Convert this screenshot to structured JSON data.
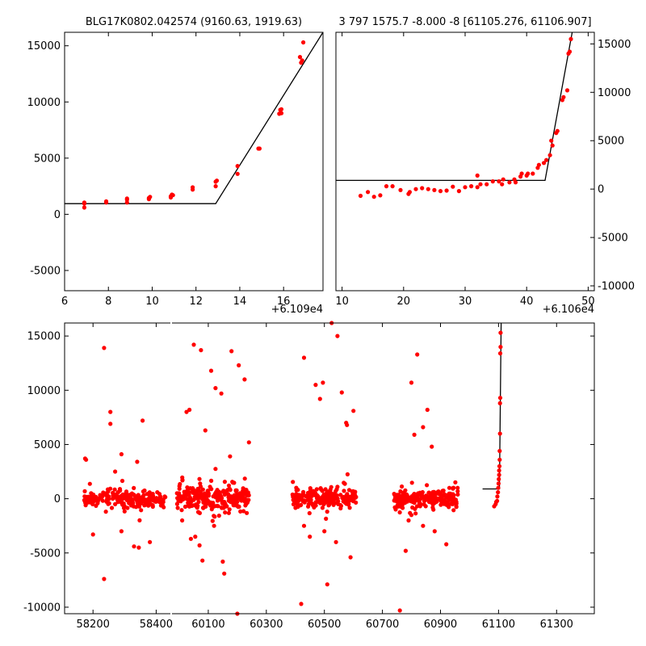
{
  "chart_data": [
    {
      "id": "top_left",
      "type": "scatter",
      "title": "BLG17K0802.042574 (9160.63, 1919.63)",
      "xlim": [
        6,
        17.8
      ],
      "ylim": [
        -6800,
        16200
      ],
      "xticks": [
        "6",
        "8",
        "10",
        "12",
        "14",
        "16"
      ],
      "xtick_values": [
        6,
        8,
        10,
        12,
        14,
        16
      ],
      "yticks": [
        "15000",
        "10000",
        "5000",
        "0",
        "-5000"
      ],
      "ytick_values": [
        15000,
        10000,
        5000,
        0,
        -5000
      ],
      "x_offset_label": "+6.109e4",
      "marker_color": "#ff0000",
      "line_color": "#000000",
      "points": [
        [
          6.9,
          600
        ],
        [
          6.9,
          950
        ],
        [
          6.9,
          1050
        ],
        [
          7.9,
          1050
        ],
        [
          7.9,
          1150
        ],
        [
          8.85,
          1050
        ],
        [
          8.85,
          1300
        ],
        [
          8.85,
          1400
        ],
        [
          9.85,
          1350
        ],
        [
          9.85,
          1450
        ],
        [
          9.9,
          1550
        ],
        [
          10.85,
          1500
        ],
        [
          10.85,
          1600
        ],
        [
          10.9,
          1750
        ],
        [
          10.95,
          1700
        ],
        [
          11.85,
          2200
        ],
        [
          11.85,
          2400
        ],
        [
          12.9,
          2500
        ],
        [
          12.9,
          2900
        ],
        [
          12.95,
          3000
        ],
        [
          13.9,
          3600
        ],
        [
          13.9,
          4300
        ],
        [
          14.85,
          5850
        ],
        [
          14.9,
          5850
        ],
        [
          15.8,
          8950
        ],
        [
          15.85,
          9300
        ],
        [
          15.9,
          9000
        ],
        [
          15.9,
          9350
        ],
        [
          16.75,
          14000
        ],
        [
          16.8,
          13500
        ],
        [
          16.85,
          13700
        ],
        [
          16.9,
          15300
        ]
      ],
      "model_line": [
        [
          6,
          950
        ],
        [
          12.9,
          950
        ],
        [
          17.8,
          16200
        ]
      ]
    },
    {
      "id": "top_right",
      "type": "scatter",
      "title": "3 797 1575.7 -8.000 -8 [61105.276, 61106.907]",
      "xlim": [
        9,
        51
      ],
      "ylim": [
        -10500,
        16200
      ],
      "xticks": [
        "10",
        "20",
        "30",
        "40",
        "50"
      ],
      "xtick_values": [
        10,
        20,
        30,
        40,
        50
      ],
      "yticks": [
        "15000",
        "10000",
        "5000",
        "0",
        "-5000",
        "-10000"
      ],
      "ytick_values": [
        15000,
        10000,
        5000,
        0,
        -5000,
        -10000
      ],
      "yaxis_side": "right",
      "x_offset_label": "+6.106e4",
      "marker_color": "#ff0000",
      "line_color": "#000000",
      "points": [
        [
          13,
          -700
        ],
        [
          14.2,
          -300
        ],
        [
          15.2,
          -800
        ],
        [
          16.2,
          -650
        ],
        [
          17.2,
          300
        ],
        [
          18.2,
          300
        ],
        [
          19.5,
          -100
        ],
        [
          20.8,
          -500
        ],
        [
          21,
          -300
        ],
        [
          22,
          0
        ],
        [
          23,
          100
        ],
        [
          24,
          0
        ],
        [
          25,
          -100
        ],
        [
          26,
          -200
        ],
        [
          27,
          -150
        ],
        [
          28,
          250
        ],
        [
          29,
          -200
        ],
        [
          30,
          200
        ],
        [
          31,
          300
        ],
        [
          32,
          1400
        ],
        [
          32,
          200
        ],
        [
          32.5,
          500
        ],
        [
          33.5,
          500
        ],
        [
          34.5,
          800
        ],
        [
          35.5,
          800
        ],
        [
          36,
          500
        ],
        [
          36.2,
          1000
        ],
        [
          37.2,
          700
        ],
        [
          38,
          1000
        ],
        [
          38.2,
          700
        ],
        [
          39,
          1300
        ],
        [
          39.2,
          1600
        ],
        [
          40,
          1400
        ],
        [
          40.2,
          1600
        ],
        [
          41,
          1600
        ],
        [
          41.8,
          2200
        ],
        [
          42,
          2500
        ],
        [
          42.8,
          2700
        ],
        [
          43.2,
          3000
        ],
        [
          43.8,
          3500
        ],
        [
          44,
          5000
        ],
        [
          44.2,
          4500
        ],
        [
          44.8,
          5800
        ],
        [
          45,
          6000
        ],
        [
          45.8,
          9200
        ],
        [
          46,
          9500
        ],
        [
          46.6,
          10200
        ],
        [
          46.8,
          14000
        ],
        [
          47,
          14200
        ],
        [
          47.2,
          15500
        ]
      ],
      "model_line": [
        [
          9,
          900
        ],
        [
          43,
          900
        ],
        [
          47.4,
          16200
        ]
      ]
    },
    {
      "id": "bottom",
      "type": "scatter",
      "title": "",
      "xlim_left": [
        58110,
        58445
      ],
      "xlim_right": [
        59975,
        61430
      ],
      "ylim": [
        -10600,
        16200
      ],
      "xticks_left": [
        "58200",
        "58400"
      ],
      "xtick_values_left": [
        58200,
        58400
      ],
      "xticks_right": [
        "60100",
        "60300",
        "60500",
        "60700",
        "60900",
        "61100",
        "61300"
      ],
      "xtick_values_right": [
        60100,
        60300,
        60500,
        60700,
        60900,
        61100,
        61300
      ],
      "yticks": [
        "15000",
        "10000",
        "5000",
        "0",
        "-5000",
        "-10000"
      ],
      "ytick_values": [
        15000,
        10000,
        5000,
        0,
        -5000,
        -10000
      ],
      "marker_color": "#ff0000",
      "line_color": "#000000",
      "clusters": [
        {
          "x_range": [
            58170,
            58430
          ],
          "side": "left",
          "n": 220,
          "sd": 350
        },
        {
          "x_range": [
            59990,
            60240
          ],
          "side": "right",
          "n": 260,
          "sd": 550
        },
        {
          "x_range": [
            60390,
            60610
          ],
          "side": "right",
          "n": 220,
          "sd": 420
        },
        {
          "x_range": [
            60740,
            60960
          ],
          "side": "right",
          "n": 220,
          "sd": 420
        }
      ],
      "outliers": [
        [
          58175,
          3700
        ],
        [
          58178,
          3600
        ],
        [
          58235,
          13900
        ],
        [
          58255,
          8000
        ],
        [
          58255,
          6900
        ],
        [
          58270,
          2500
        ],
        [
          58290,
          4100
        ],
        [
          58340,
          3400
        ],
        [
          58357,
          7200
        ],
        [
          58380,
          -4000
        ],
        [
          58200,
          -3300
        ],
        [
          58235,
          -7400
        ],
        [
          58330,
          -4400
        ],
        [
          58345,
          -4500
        ],
        [
          58290,
          -3000
        ],
        [
          60025,
          8000
        ],
        [
          60035,
          8200
        ],
        [
          60050,
          14200
        ],
        [
          60075,
          13700
        ],
        [
          60090,
          6300
        ],
        [
          60110,
          11800
        ],
        [
          60125,
          10200
        ],
        [
          60145,
          9700
        ],
        [
          60180,
          13600
        ],
        [
          60205,
          12300
        ],
        [
          60225,
          11000
        ],
        [
          60240,
          5200
        ],
        [
          60175,
          3900
        ],
        [
          60040,
          -3700
        ],
        [
          60055,
          -3500
        ],
        [
          60070,
          -4300
        ],
        [
          60080,
          -5700
        ],
        [
          60150,
          -5800
        ],
        [
          60155,
          -6900
        ],
        [
          60200,
          -10600
        ],
        [
          60010,
          -2000
        ],
        [
          60120,
          -2500
        ],
        [
          60430,
          13000
        ],
        [
          60470,
          10500
        ],
        [
          60485,
          9200
        ],
        [
          60495,
          10700
        ],
        [
          60525,
          16200
        ],
        [
          60545,
          15000
        ],
        [
          60560,
          9800
        ],
        [
          60575,
          7000
        ],
        [
          60578,
          6800
        ],
        [
          60600,
          8100
        ],
        [
          60420,
          -9700
        ],
        [
          60510,
          -7900
        ],
        [
          60430,
          -2500
        ],
        [
          60450,
          -3500
        ],
        [
          60500,
          -3000
        ],
        [
          60540,
          -4000
        ],
        [
          60590,
          -5400
        ],
        [
          60800,
          10700
        ],
        [
          60820,
          13300
        ],
        [
          60855,
          8200
        ],
        [
          60810,
          5900
        ],
        [
          60840,
          6600
        ],
        [
          60870,
          4800
        ],
        [
          60780,
          -4800
        ],
        [
          60840,
          -2500
        ],
        [
          60880,
          -3000
        ],
        [
          60920,
          -4200
        ],
        [
          60760,
          -10300
        ],
        [
          60790,
          -2000
        ]
      ],
      "rise_points": [
        [
          61085,
          -700
        ],
        [
          61090,
          -500
        ],
        [
          61092,
          -300
        ],
        [
          61095,
          -200
        ],
        [
          61096,
          200
        ],
        [
          61098,
          600
        ],
        [
          61099,
          1000
        ],
        [
          61100,
          1400
        ],
        [
          61101,
          1800
        ],
        [
          61102,
          2200
        ],
        [
          61102,
          2600
        ],
        [
          61103,
          3000
        ],
        [
          61104,
          3600
        ],
        [
          61104,
          4400
        ],
        [
          61105,
          6000
        ],
        [
          61105,
          8800
        ],
        [
          61106,
          9300
        ],
        [
          61106,
          13400
        ],
        [
          61107,
          14000
        ],
        [
          61107,
          15300
        ]
      ],
      "model_line": [
        [
          61045,
          900
        ],
        [
          61103,
          900
        ],
        [
          61109,
          16200
        ]
      ]
    }
  ]
}
